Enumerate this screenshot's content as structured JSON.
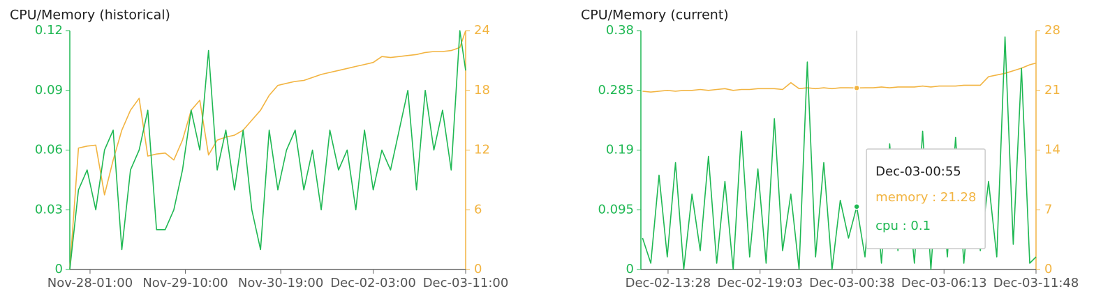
{
  "chart_data": [
    {
      "type": "line",
      "title": "CPU/Memory (historical)",
      "x": [
        "Nov-27-18:00",
        "Nov-27-21:00",
        "Nov-28-00:00",
        "Nov-28-03:00",
        "Nov-28-06:00",
        "Nov-28-09:00",
        "Nov-28-12:00",
        "Nov-28-15:00",
        "Nov-28-18:00",
        "Nov-28-21:00",
        "Nov-29-00:00",
        "Nov-29-03:00",
        "Nov-29-06:00",
        "Nov-29-09:00",
        "Nov-29-12:00",
        "Nov-29-15:00",
        "Nov-29-18:00",
        "Nov-29-21:00",
        "Nov-30-00:00",
        "Nov-30-03:00",
        "Nov-30-06:00",
        "Nov-30-09:00",
        "Nov-30-12:00",
        "Nov-30-15:00",
        "Nov-30-18:00",
        "Nov-30-21:00",
        "Dec-01-00:00",
        "Dec-01-03:00",
        "Dec-01-06:00",
        "Dec-01-09:00",
        "Dec-01-12:00",
        "Dec-01-15:00",
        "Dec-01-18:00",
        "Dec-01-21:00",
        "Dec-02-00:00",
        "Dec-02-03:00",
        "Dec-02-06:00",
        "Dec-02-09:00",
        "Dec-02-12:00",
        "Dec-02-15:00",
        "Dec-02-18:00",
        "Dec-02-21:00",
        "Dec-03-00:00",
        "Dec-03-03:00",
        "Dec-03-06:00",
        "Dec-03-09:00",
        "Dec-03-11:00"
      ],
      "series": [
        {
          "color": "#f2b441",
          "axis": "y2",
          "values": [
            0,
            12.2,
            12.4,
            12.5,
            7.5,
            11,
            14,
            16,
            17.2,
            11.4,
            11.6,
            11.7,
            11,
            13,
            16,
            17,
            11.5,
            13,
            13.3,
            13.5,
            14,
            15,
            16,
            17.5,
            18.5,
            18.7,
            18.9,
            19,
            19.3,
            19.6,
            19.8,
            20,
            20.2,
            20.4,
            20.6,
            20.8,
            21.4,
            21.3,
            21.4,
            21.5,
            21.6,
            21.8,
            21.9,
            21.9,
            22,
            22.3,
            24
          ]
        },
        {
          "color": "#1fb853",
          "values": [
            0,
            0.04,
            0.05,
            0.03,
            0.06,
            0.07,
            0.01,
            0.05,
            0.06,
            0.08,
            0.02,
            0.02,
            0.03,
            0.05,
            0.08,
            0.06,
            0.11,
            0.05,
            0.07,
            0.04,
            0.07,
            0.03,
            0.01,
            0.07,
            0.04,
            0.06,
            0.07,
            0.04,
            0.06,
            0.03,
            0.07,
            0.05,
            0.06,
            0.03,
            0.07,
            0.04,
            0.06,
            0.05,
            0.07,
            0.09,
            0.04,
            0.09,
            0.06,
            0.08,
            0.05,
            0.12,
            0.1
          ]
        }
      ],
      "xlim": [
        "Nov-27-18:00",
        "Dec-03-11:00"
      ],
      "xticks": [
        "Nov-28-01:00",
        "Nov-29-10:00",
        "Nov-30-19:00",
        "Dec-02-03:00",
        "Dec-03-11:00"
      ],
      "ylim": [
        0,
        0.12
      ],
      "yticks": [
        0,
        0.03,
        0.06,
        0.09,
        0.12
      ],
      "y2lim": [
        0,
        24
      ],
      "y2ticks": [
        0,
        6,
        12,
        18,
        24
      ]
    },
    {
      "type": "line",
      "title": "CPU/Memory (current)",
      "x": [
        "Dec-02-11:55",
        "Dec-02-12:25",
        "Dec-02-12:55",
        "Dec-02-13:25",
        "Dec-02-13:55",
        "Dec-02-14:25",
        "Dec-02-14:55",
        "Dec-02-15:25",
        "Dec-02-15:55",
        "Dec-02-16:25",
        "Dec-02-16:55",
        "Dec-02-17:25",
        "Dec-02-17:55",
        "Dec-02-18:25",
        "Dec-02-18:55",
        "Dec-02-19:25",
        "Dec-02-19:55",
        "Dec-02-20:25",
        "Dec-02-20:55",
        "Dec-02-21:25",
        "Dec-02-21:55",
        "Dec-02-22:25",
        "Dec-02-22:55",
        "Dec-02-23:25",
        "Dec-02-23:55",
        "Dec-03-00:25",
        "Dec-03-00:55",
        "Dec-03-01:25",
        "Dec-03-01:55",
        "Dec-03-02:25",
        "Dec-03-02:55",
        "Dec-03-03:25",
        "Dec-03-03:55",
        "Dec-03-04:25",
        "Dec-03-04:55",
        "Dec-03-05:25",
        "Dec-03-05:55",
        "Dec-03-06:25",
        "Dec-03-06:55",
        "Dec-03-07:25",
        "Dec-03-07:55",
        "Dec-03-08:25",
        "Dec-03-08:55",
        "Dec-03-09:25",
        "Dec-03-09:55",
        "Dec-03-10:25",
        "Dec-03-10:55",
        "Dec-03-11:25",
        "Dec-03-11:48"
      ],
      "series": [
        {
          "color": "#f2b441",
          "axis": "y2",
          "values": [
            20.9,
            20.8,
            20.9,
            21,
            20.9,
            21,
            21,
            21.1,
            21,
            21.1,
            21.2,
            21,
            21.1,
            21.1,
            21.2,
            21.2,
            21.2,
            21.1,
            21.9,
            21.2,
            21.3,
            21.2,
            21.3,
            21.2,
            21.3,
            21.3,
            21.28,
            21.3,
            21.3,
            21.4,
            21.3,
            21.4,
            21.4,
            21.4,
            21.5,
            21.4,
            21.5,
            21.5,
            21.5,
            21.6,
            21.6,
            21.6,
            22.6,
            22.8,
            23,
            23.3,
            23.6,
            24,
            24.2
          ]
        },
        {
          "color": "#1fb853",
          "values": [
            0.05,
            0.01,
            0.15,
            0.02,
            0.17,
            0.0,
            0.12,
            0.03,
            0.18,
            0.01,
            0.14,
            0.0,
            0.22,
            0.02,
            0.16,
            0.01,
            0.24,
            0.03,
            0.12,
            0.0,
            0.33,
            0.02,
            0.17,
            0.0,
            0.11,
            0.05,
            0.1,
            0.02,
            0.18,
            0.01,
            0.2,
            0.03,
            0.15,
            0.01,
            0.22,
            0.0,
            0.19,
            0.02,
            0.21,
            0.01,
            0.16,
            0.03,
            0.14,
            0.02,
            0.37,
            0.04,
            0.32,
            0.01,
            0.02
          ]
        }
      ],
      "xlim": [
        "Dec-02-11:49",
        "Dec-03-11:48"
      ],
      "xticks": [
        "Dec-02-13:28",
        "Dec-02-19:03",
        "Dec-03-00:38",
        "Dec-03-06:13",
        "Dec-03-11:48"
      ],
      "ylim": [
        0,
        0.38
      ],
      "yticks": [
        0,
        0.095,
        0.19,
        0.285,
        0.38
      ],
      "y2lim": [
        0,
        28
      ],
      "y2ticks": [
        0,
        7,
        14,
        21,
        28
      ],
      "tooltip": {
        "x": "Dec-03-00:55",
        "title": "Dec-03-00:55",
        "items": [
          "memory : 21.28",
          "cpu : 0.1"
        ]
      }
    }
  ]
}
